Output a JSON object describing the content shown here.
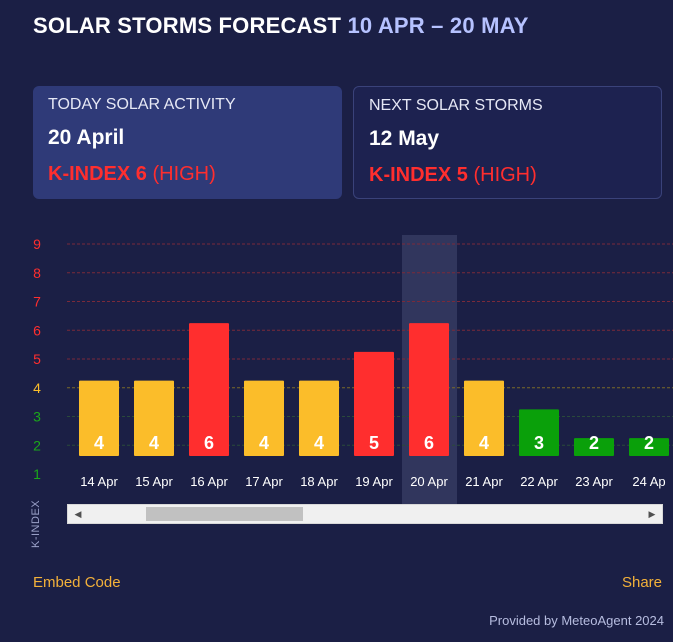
{
  "header": {
    "title": "SOLAR STORMS FORECAST",
    "range": "10 APR – 20 MAY"
  },
  "today_card": {
    "label": "TODAY SOLAR ACTIVITY",
    "date": "20 April",
    "k_value": "K-INDEX 6",
    "k_level": "(HIGH)"
  },
  "next_card": {
    "label": "NEXT SOLAR STORMS",
    "date": "12 May",
    "k_value": "K-INDEX 5",
    "k_level": "(HIGH)"
  },
  "chart_data": {
    "type": "bar",
    "ylabel": "K-INDEX",
    "ylim": [
      1,
      9
    ],
    "y_ticks": [
      1,
      2,
      3,
      4,
      5,
      6,
      7,
      8,
      9
    ],
    "categories": [
      "14 Apr",
      "15 Apr",
      "16 Apr",
      "17 Apr",
      "18 Apr",
      "19 Apr",
      "20 Apr",
      "21 Apr",
      "22 Apr",
      "23 Apr",
      "24 Ap"
    ],
    "values": [
      4,
      4,
      6,
      4,
      4,
      5,
      6,
      4,
      3,
      2,
      2
    ],
    "highlighted": "20 Apr",
    "colors": {
      "low": "#0aa00a",
      "moderate": "#fbbd2a",
      "high": "#ff2e2e"
    }
  },
  "footer": {
    "embed_label": "Embed Code",
    "share_label": "Share",
    "credit": "Provided by MeteoAgent 2024"
  }
}
